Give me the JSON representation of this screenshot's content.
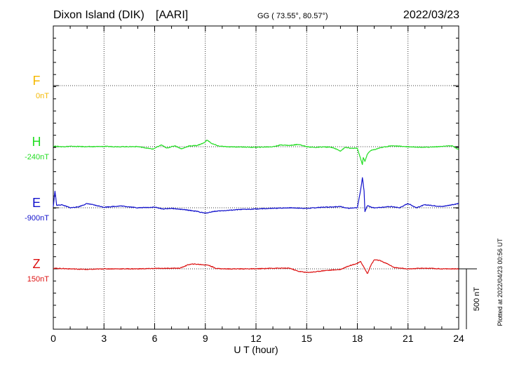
{
  "header": {
    "station": "Dixon Island (DIK)",
    "institute": "[AARI]",
    "coords": "GG ( 73.55°,  80.57°)",
    "date": "2022/03/23"
  },
  "side_note": "Plotted at 2022/04/23 00:56 UT",
  "chart_data": {
    "type": "line",
    "xlabel": "U T (hour)",
    "xlim": [
      0,
      24
    ],
    "x_ticks": [
      "0",
      "3",
      "6",
      "9",
      "12",
      "15",
      "18",
      "21",
      "24"
    ],
    "scale_bar_label": "500 nT",
    "scale_bar_nT": 500,
    "grid": true,
    "series": [
      {
        "name": "F",
        "baseline_label": "0nT",
        "color": "#f5b800",
        "x": [],
        "y": []
      },
      {
        "name": "H",
        "baseline_label": "-240nT",
        "color": "#22dd22",
        "x": [
          0,
          0.5,
          1,
          2,
          3,
          4,
          5,
          5.9,
          6.4,
          6.7,
          7.2,
          7.6,
          8.0,
          8.5,
          8.9,
          9.1,
          9.4,
          9.8,
          10.2,
          11,
          12,
          13,
          13.5,
          14,
          14.5,
          15,
          15.5,
          16,
          16.5,
          17.0,
          17.3,
          17.6,
          18.0,
          18.1,
          18.2,
          18.3,
          18.35,
          18.45,
          18.6,
          18.8,
          19.0,
          19.3,
          19.7,
          20,
          21,
          22,
          23,
          23.6,
          24
        ],
        "y": [
          5,
          0,
          3,
          0,
          2,
          0,
          1,
          -20,
          15,
          -12,
          8,
          -18,
          5,
          10,
          30,
          55,
          25,
          5,
          0,
          -2,
          -5,
          0,
          15,
          10,
          20,
          0,
          -6,
          -2,
          -5,
          -35,
          -5,
          -14,
          -12,
          -60,
          -100,
          -150,
          -90,
          -120,
          -60,
          -30,
          -25,
          -10,
          0,
          8,
          0,
          -5,
          2,
          8,
          -25
        ]
      },
      {
        "name": "E",
        "baseline_label": "-900nT",
        "color": "#1111cc",
        "x": [
          0,
          0.1,
          0.2,
          0.5,
          1,
          1.5,
          2,
          3,
          4,
          5,
          6,
          6.5,
          7,
          8,
          8.5,
          9,
          9.5,
          10,
          11,
          12,
          13,
          14,
          15,
          16,
          17,
          17.5,
          18.0,
          18.2,
          18.3,
          18.4,
          18.45,
          18.6,
          18.8,
          19,
          20,
          20.5,
          21,
          21.5,
          22,
          23,
          24
        ],
        "y": [
          10,
          140,
          20,
          25,
          0,
          8,
          35,
          5,
          15,
          0,
          5,
          -10,
          -5,
          -20,
          -30,
          -45,
          -30,
          -25,
          -15,
          -10,
          -5,
          0,
          -5,
          5,
          10,
          -5,
          0,
          150,
          250,
          140,
          -30,
          20,
          5,
          0,
          10,
          0,
          35,
          0,
          25,
          10,
          35
        ]
      },
      {
        "name": "Z",
        "baseline_label": "150nT",
        "color": "#dd1111",
        "x": [
          0,
          1,
          2,
          3,
          4,
          5,
          6,
          7,
          7.5,
          8,
          8.3,
          8.8,
          9.2,
          9.6,
          10,
          11,
          12,
          13,
          14,
          14.5,
          15,
          15.5,
          16,
          16.5,
          17,
          17.5,
          18,
          18.2,
          18.4,
          18.6,
          18.8,
          19,
          19.3,
          19.8,
          20.2,
          21,
          22,
          23,
          24
        ],
        "y": [
          5,
          0,
          -5,
          0,
          0,
          0,
          3,
          5,
          5,
          35,
          40,
          35,
          30,
          5,
          0,
          0,
          0,
          5,
          5,
          -20,
          -30,
          -25,
          -15,
          -10,
          -5,
          25,
          45,
          60,
          10,
          -40,
          30,
          75,
          70,
          40,
          10,
          0,
          5,
          0,
          0
        ]
      }
    ]
  }
}
